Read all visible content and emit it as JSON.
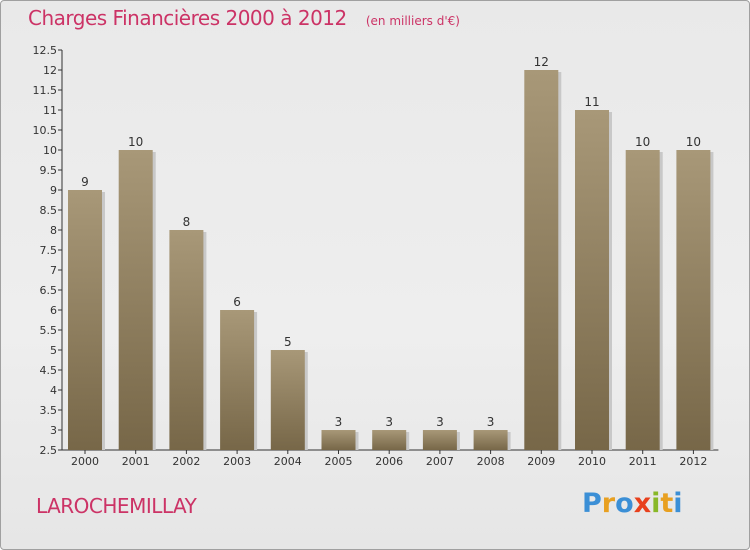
{
  "header": {
    "title": "Charges Financières 2000 à 2012",
    "subtitle": "(en milliers d'€)"
  },
  "footer": {
    "place": "LAROCHEMILLAY",
    "logo": "Proxiti"
  },
  "colors": {
    "title": "#cc3366",
    "bar_top": "#a89878",
    "bar_bottom": "#7a6a4c",
    "logo_letters": [
      "#3b8fd6",
      "#e8a021",
      "#3b8fd6",
      "#e8401c",
      "#88b828",
      "#e8a021",
      "#3b8fd6"
    ]
  },
  "chart_data": {
    "type": "bar",
    "title": "Charges Financières 2000 à 2012",
    "subtitle": "(en milliers d'€)",
    "xlabel": "",
    "ylabel": "",
    "categories": [
      "2000",
      "2001",
      "2002",
      "2003",
      "2004",
      "2005",
      "2006",
      "2007",
      "2008",
      "2009",
      "2010",
      "2011",
      "2012"
    ],
    "values": [
      9,
      10,
      8,
      6,
      5,
      3,
      3,
      3,
      3,
      12,
      11,
      10,
      10
    ],
    "data_labels": [
      "9",
      "10",
      "8",
      "6",
      "5",
      "3",
      "3",
      "3",
      "3",
      "12",
      "11",
      "10",
      "10"
    ],
    "ylim": [
      2.5,
      12.5
    ],
    "yticks": [
      "2.5",
      "3",
      "3.5",
      "4",
      "4.5",
      "5",
      "5.5",
      "6",
      "6.5",
      "7",
      "7.5",
      "8",
      "8.5",
      "9",
      "9.5",
      "10",
      "10.5",
      "11",
      "11.5",
      "12",
      "12.5"
    ],
    "grid": false,
    "legend": "none"
  }
}
